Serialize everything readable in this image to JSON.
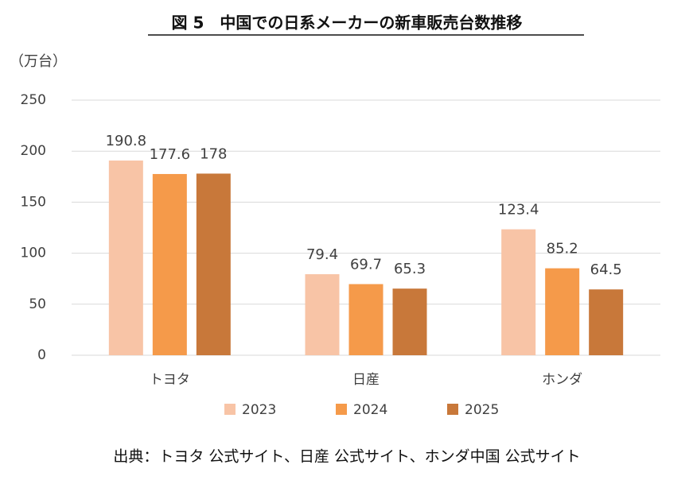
{
  "chart_data": {
    "type": "bar",
    "title": "図 5　中国での日系メーカーの新車販売台数推移",
    "y_label": "（万台）",
    "source": "出典：トヨタ 公式サイト、日産 公式サイト、ホンダ中国 公式サイト",
    "categories": [
      "トヨタ",
      "日産",
      "ホンダ"
    ],
    "series": [
      {
        "name": "2023",
        "color": "#f8c4a6",
        "values": [
          190.8,
          79.4,
          123.4
        ]
      },
      {
        "name": "2024",
        "color": "#f59a4a",
        "values": [
          177.6,
          69.7,
          85.2
        ]
      },
      {
        "name": "2025",
        "color": "#c8783a",
        "values": [
          178.0,
          65.3,
          64.5
        ]
      }
    ],
    "ylim": [
      0,
      250
    ],
    "yticks": [
      0,
      50,
      100,
      150,
      200,
      250
    ],
    "grid": true,
    "legend": "bottom"
  }
}
